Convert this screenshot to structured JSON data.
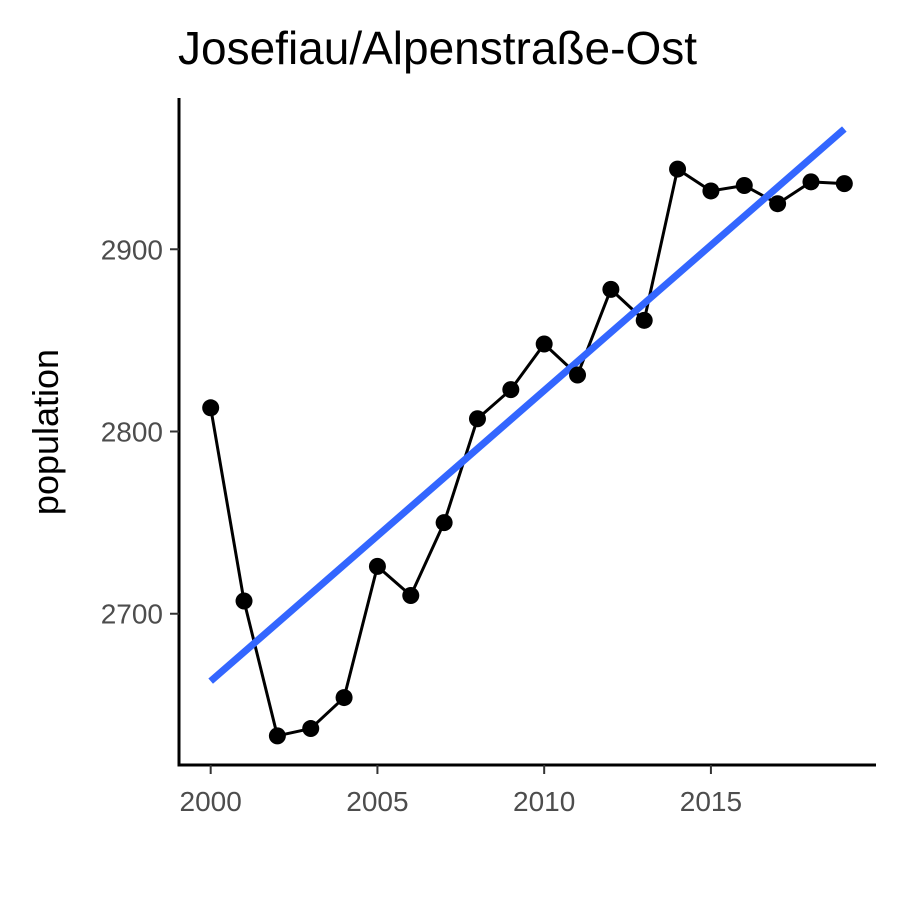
{
  "chart_data": {
    "type": "line",
    "title": "Josefiau/Alpenstraße-Ost",
    "xlabel": "",
    "ylabel": "population",
    "x": [
      2000,
      2001,
      2002,
      2003,
      2004,
      2005,
      2006,
      2007,
      2008,
      2009,
      2010,
      2011,
      2012,
      2013,
      2014,
      2015,
      2016,
      2017,
      2018,
      2019
    ],
    "series": [
      {
        "values": [
          2813,
          2707,
          2633,
          2637,
          2654,
          2726,
          2710,
          2750,
          2807,
          2823,
          2848,
          2831,
          2878,
          2861,
          2944,
          2932,
          2935,
          2925,
          2937,
          2936
        ],
        "color": "#000000"
      }
    ],
    "trend_line": {
      "method": "linear fit",
      "color": "#3366ff",
      "start": {
        "x": 2000,
        "y": 2663
      },
      "end": {
        "x": 2019,
        "y": 2966
      }
    },
    "x_ticks": [
      "2000",
      "2005",
      "2010",
      "2015"
    ],
    "y_ticks": [
      "2700",
      "2800",
      "2900"
    ],
    "xlim": [
      1999.05,
      2019.95
    ],
    "ylim": [
      2617,
      2983
    ],
    "grid": false,
    "legend": "none"
  }
}
